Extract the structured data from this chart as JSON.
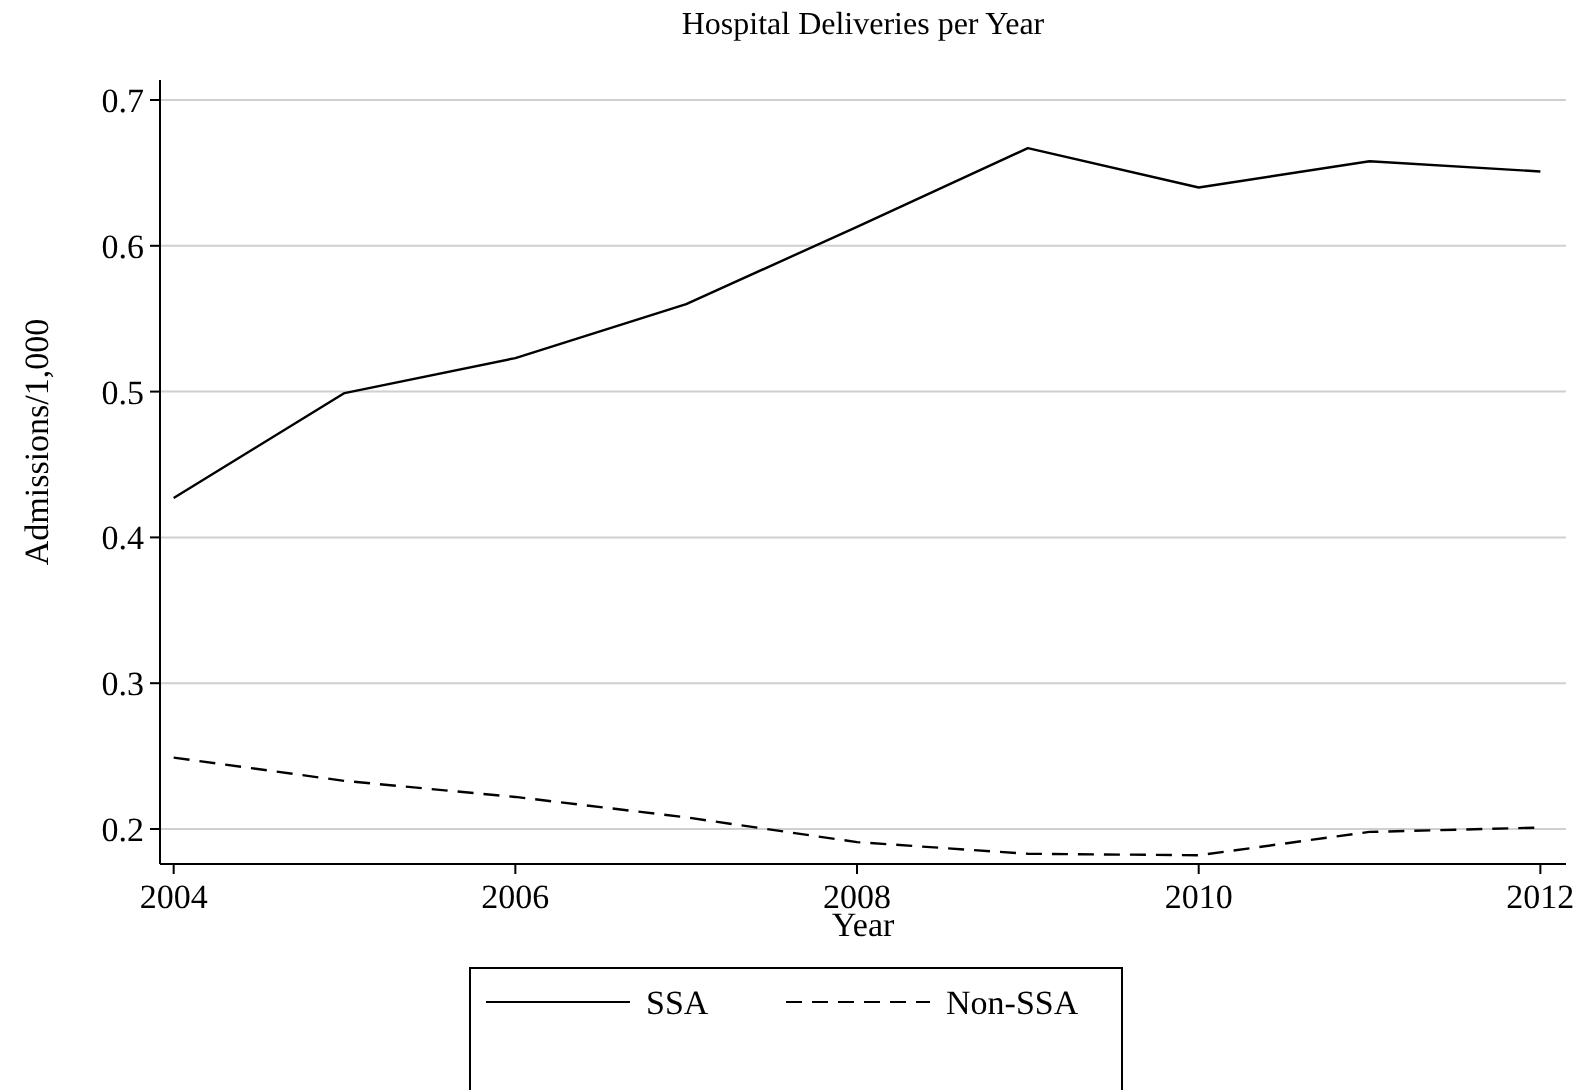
{
  "chart_data": {
    "type": "line",
    "title": "Hospital Deliveries per Year",
    "xlabel": "Year",
    "ylabel": "Admissions/1,000",
    "x": [
      2004,
      2005,
      2006,
      2007,
      2008,
      2009,
      2010,
      2011,
      2012
    ],
    "series": [
      {
        "name": "SSA",
        "color": "#000000",
        "line_style": "solid",
        "values": [
          0.427,
          0.499,
          0.523,
          0.56,
          0.613,
          0.667,
          0.64,
          0.658,
          0.651
        ]
      },
      {
        "name": "Non-SSA",
        "color": "#000000",
        "line_style": "dashed",
        "values": [
          0.249,
          0.233,
          0.222,
          0.208,
          0.191,
          0.183,
          0.182,
          0.198,
          0.201
        ]
      }
    ],
    "xlim": [
      2003.92,
      2012.15
    ],
    "xticks": [
      2004,
      2006,
      2008,
      2010,
      2012
    ],
    "ylim": [
      0.176,
      0.7
    ],
    "yticks": [
      {
        "value": 0.2,
        "label": "0.2"
      },
      {
        "value": 0.3,
        "label": "0.3"
      },
      {
        "value": 0.4,
        "label": "0.4"
      },
      {
        "value": 0.5,
        "label": "0.5"
      },
      {
        "value": 0.6,
        "label": "0.6"
      },
      {
        "value": 0.7,
        "label": "0.7"
      }
    ],
    "grid": "y",
    "legend": "bottom"
  }
}
